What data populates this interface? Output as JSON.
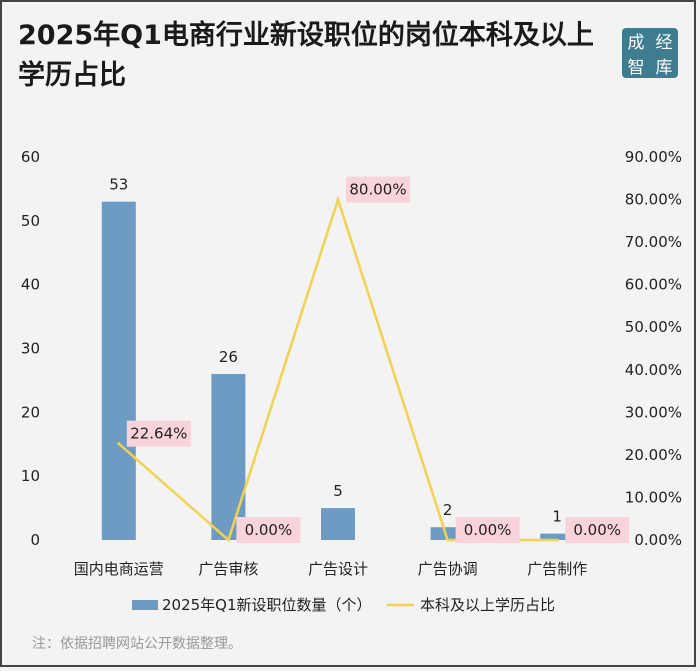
{
  "title": "2025年Q1电商行业新设职位的岗位本科及以上学历占比",
  "logo": {
    "chars": [
      "成",
      "经",
      "智",
      "库"
    ]
  },
  "note": "注：依据招聘网站公开数据整理。",
  "colors": {
    "bar": "#6d9bc3",
    "line": "#f2d34f",
    "label_bg": "#f8d3d9"
  },
  "chart_data": {
    "type": "bar",
    "categories": [
      "国内电商运营",
      "广告审核",
      "广告设计",
      "广告协调",
      "广告制作"
    ],
    "series": [
      {
        "name": "2025年Q1新设职位数量（个）",
        "type": "bar",
        "axis": "left",
        "values": [
          53,
          26,
          5,
          2,
          1
        ],
        "labels": [
          "53",
          "26",
          "5",
          "2",
          "1"
        ]
      },
      {
        "name": "本科及以上学历占比",
        "type": "line",
        "axis": "right",
        "values": [
          22.64,
          0,
          80,
          0,
          0
        ],
        "labels": [
          "22.64%",
          "0.00%",
          "80.00%",
          "0.00%",
          "0.00%"
        ]
      }
    ],
    "left_axis": {
      "ticks": [
        "0",
        "10",
        "20",
        "30",
        "40",
        "50",
        "60"
      ],
      "range": [
        0,
        60
      ]
    },
    "right_axis": {
      "ticks": [
        "0.00%",
        "10.00%",
        "20.00%",
        "30.00%",
        "40.00%",
        "50.00%",
        "60.00%",
        "70.00%",
        "80.00%",
        "90.00%"
      ],
      "range": [
        0,
        90
      ]
    },
    "grid": false,
    "legend": "bottom"
  }
}
